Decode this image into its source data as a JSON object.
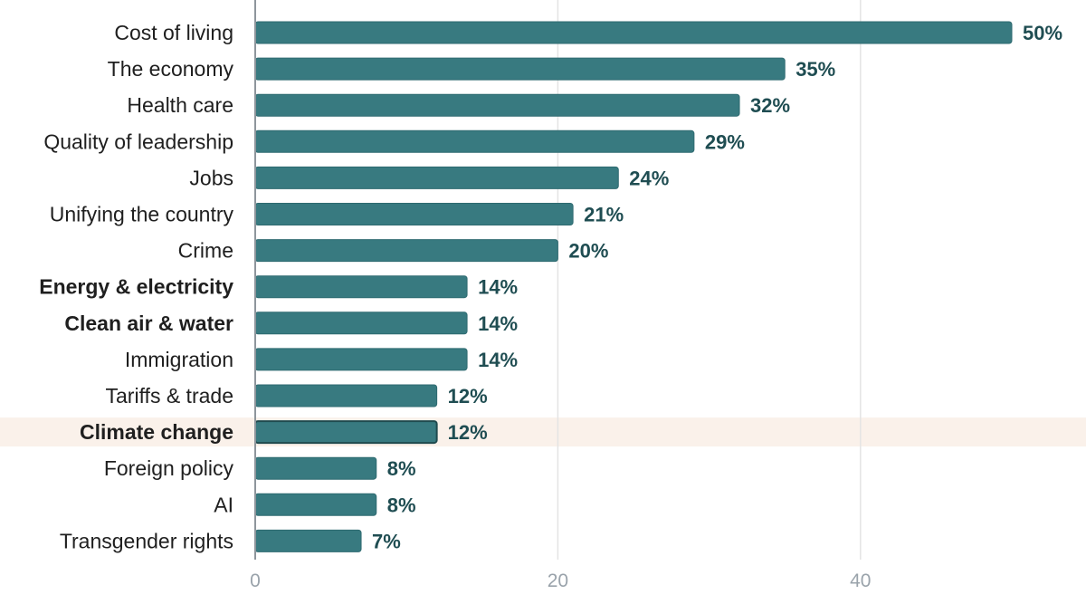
{
  "chart_data": {
    "type": "bar",
    "orientation": "horizontal",
    "categories": [
      "Cost of living",
      "The economy",
      "Health care",
      "Quality of leadership",
      "Jobs",
      "Unifying the country",
      "Crime",
      "Energy & electricity",
      "Clean air & water",
      "Immigration",
      "Tariffs & trade",
      "Climate change",
      "Foreign policy",
      "AI",
      "Transgender rights"
    ],
    "values": [
      50,
      35,
      32,
      29,
      24,
      21,
      20,
      14,
      14,
      14,
      12,
      12,
      8,
      8,
      7
    ],
    "value_labels": [
      "50%",
      "35%",
      "32%",
      "29%",
      "24%",
      "21%",
      "20%",
      "14%",
      "14%",
      "14%",
      "12%",
      "12%",
      "8%",
      "8%",
      "7%"
    ],
    "emphasized_categories": [
      "Energy & electricity",
      "Clean air & water",
      "Climate change"
    ],
    "highlighted_category": "Climate change",
    "x_ticks": [
      0,
      20,
      40
    ],
    "xlim": [
      0,
      54.5
    ],
    "grid": true,
    "title": "",
    "xlabel": "",
    "ylabel": ""
  },
  "colors": {
    "bar": "#387a80",
    "bar_border": "#2e6a70",
    "highlight_bar_border": "#1f4a4e",
    "highlight_band": "#faf1ea",
    "emphasis_text": "#387a80",
    "value_text": "#1f4d52",
    "category_text": "#1f1f1f",
    "grid": "#e4e4e4",
    "axis": "#8e969c",
    "tick_text": "#9aa3ab"
  }
}
